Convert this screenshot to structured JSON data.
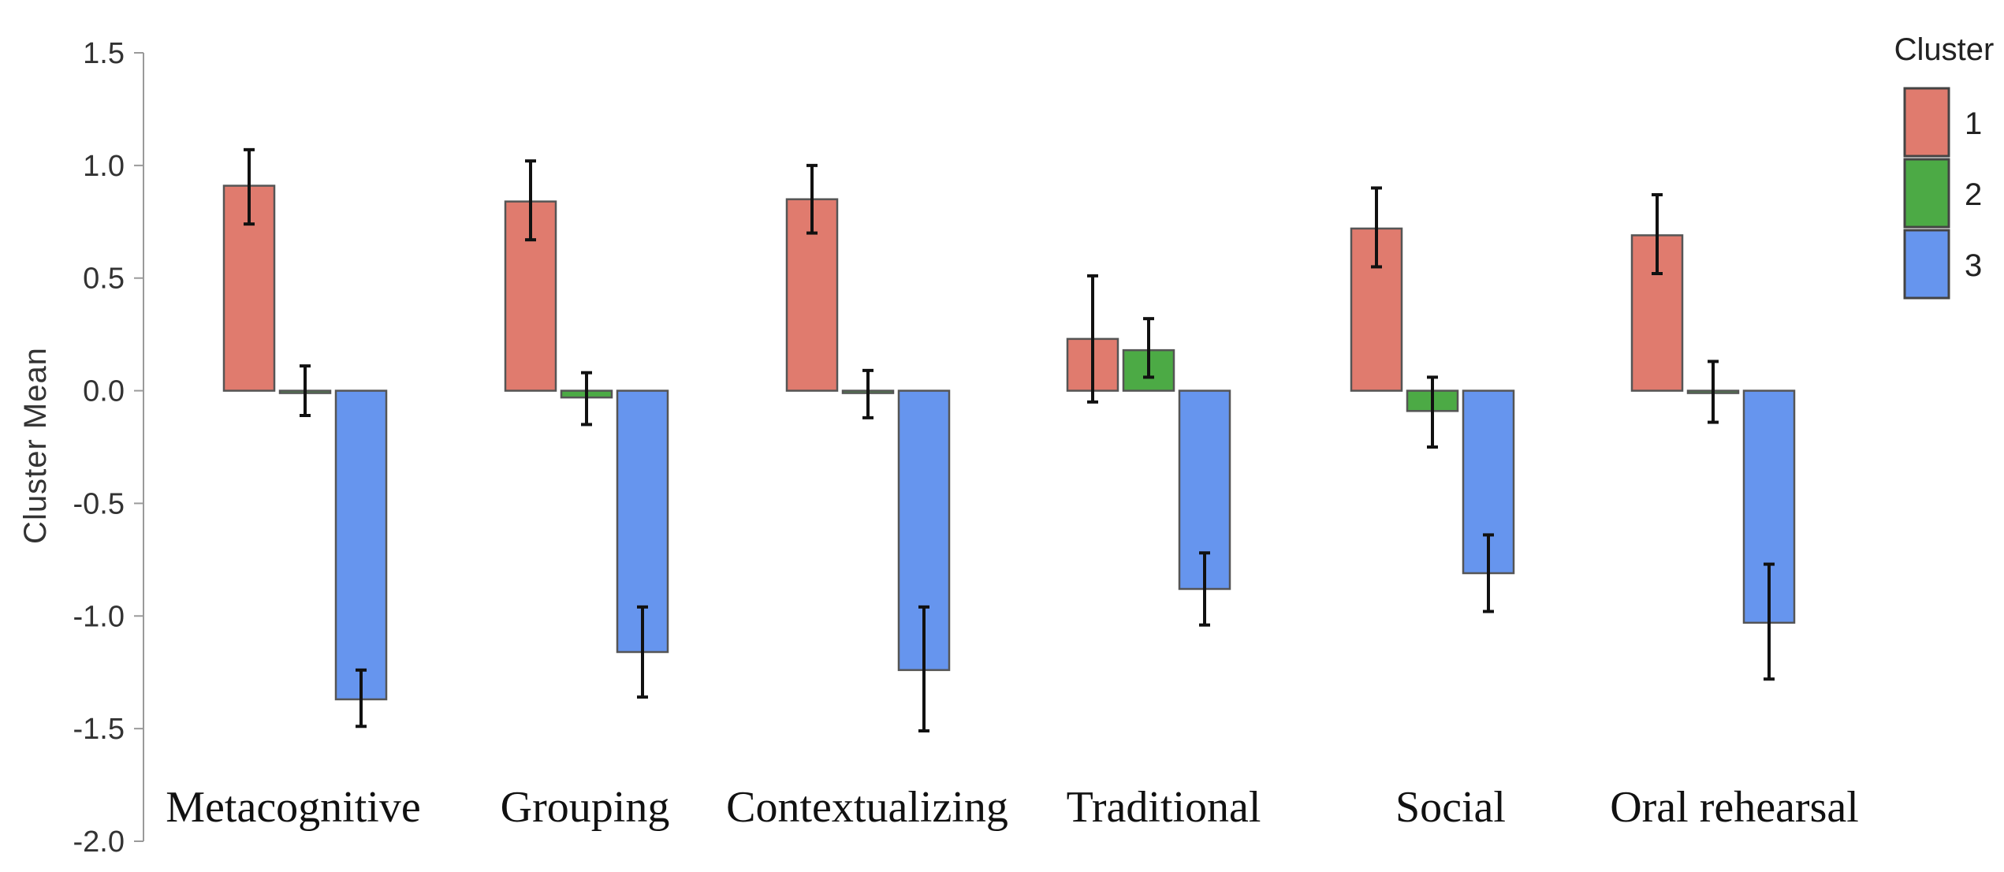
{
  "chart_data": {
    "type": "bar",
    "ylabel": "Cluster Mean",
    "ylim": [
      -2.0,
      1.5
    ],
    "yticks": [
      "1.5",
      "1.0",
      "0.5",
      "0.0",
      "-0.5",
      "-1.0",
      "-1.5",
      "-2.0"
    ],
    "grid": false,
    "legend": {
      "title": "Cluster",
      "position": "top-right"
    },
    "categories": [
      "Metacognitive",
      "Grouping",
      "Contextualizing",
      "Traditional",
      "Social",
      "Oral rehearsal"
    ],
    "series": [
      {
        "name": "1",
        "color": "#e07b6e",
        "stroke": "#b85a4e",
        "values": [
          0.91,
          0.84,
          0.85,
          0.23,
          0.72,
          0.69
        ],
        "error_low": [
          0.74,
          0.67,
          0.7,
          -0.05,
          0.55,
          0.52
        ],
        "error_high": [
          1.07,
          1.02,
          1.0,
          0.51,
          0.9,
          0.87
        ]
      },
      {
        "name": "2",
        "color": "#4caa45",
        "stroke": "#2d7a2a",
        "values": [
          0.0,
          -0.03,
          -0.01,
          0.18,
          -0.09,
          0.0
        ],
        "error_low": [
          -0.11,
          -0.15,
          -0.12,
          0.06,
          -0.25,
          -0.14
        ],
        "error_high": [
          0.11,
          0.08,
          0.09,
          0.32,
          0.06,
          0.13
        ]
      },
      {
        "name": "3",
        "color": "#6695ee",
        "stroke": "#4a73c0",
        "values": [
          -1.37,
          -1.16,
          -1.24,
          -0.88,
          -0.81,
          -1.03
        ],
        "error_low": [
          -1.49,
          -1.36,
          -1.51,
          -1.04,
          -0.98,
          -1.28
        ],
        "error_high": [
          -1.24,
          -0.96,
          -0.96,
          -0.72,
          -0.64,
          -0.77
        ]
      }
    ]
  }
}
